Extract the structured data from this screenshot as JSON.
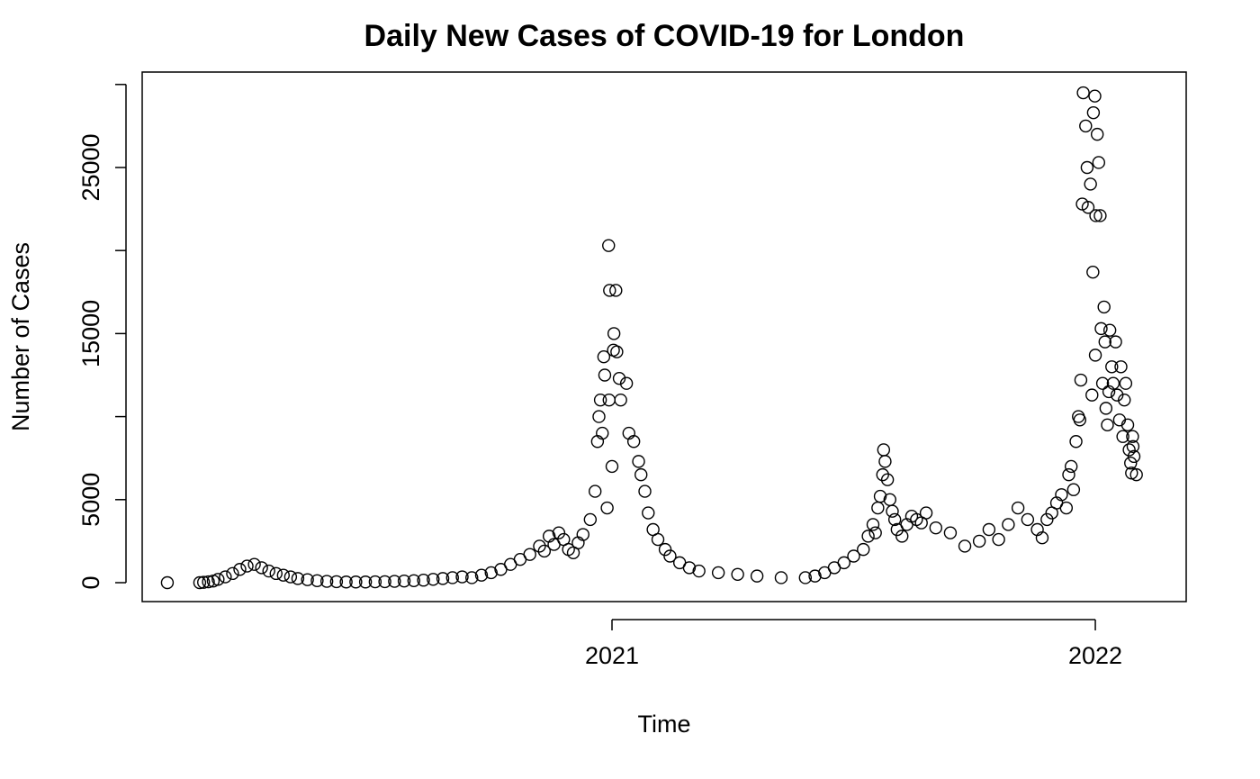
{
  "chart_data": {
    "type": "scatter",
    "title": "Daily New Cases of COVID-19 for London",
    "x_label": "Time",
    "y_label": "Number of Cases",
    "x": [
      2020.08,
      2020.147,
      2020.155,
      2020.165,
      2020.175,
      2020.185,
      2020.2,
      2020.215,
      2020.23,
      2020.245,
      2020.26,
      2020.275,
      2020.29,
      2020.305,
      2020.32,
      2020.335,
      2020.35,
      2020.37,
      2020.39,
      2020.41,
      2020.43,
      2020.45,
      2020.47,
      2020.49,
      2020.51,
      2020.53,
      2020.55,
      2020.57,
      2020.59,
      2020.61,
      2020.63,
      2020.65,
      2020.67,
      2020.69,
      2020.71,
      2020.73,
      2020.75,
      2020.77,
      2020.79,
      2020.81,
      2020.83,
      2020.85,
      2020.86,
      2020.87,
      2020.88,
      2020.89,
      2020.9,
      2020.91,
      2020.92,
      2020.93,
      2020.94,
      2020.955,
      2020.965,
      2020.97,
      2020.973,
      2020.976,
      2020.98,
      2020.983,
      2020.985,
      2020.99,
      2020.993,
      2020.994,
      2020.995,
      2021.0,
      2021.003,
      2021.004,
      2021.008,
      2021.01,
      2021.015,
      2021.018,
      2021.03,
      2021.035,
      2021.045,
      2021.055,
      2021.06,
      2021.068,
      2021.075,
      2021.085,
      2021.095,
      2021.11,
      2021.12,
      2021.14,
      2021.16,
      2021.18,
      2021.22,
      2021.26,
      2021.3,
      2021.35,
      2021.4,
      2021.42,
      2021.44,
      2021.46,
      2021.48,
      2021.5,
      2021.52,
      2021.53,
      2021.54,
      2021.545,
      2021.55,
      2021.555,
      2021.56,
      2021.562,
      2021.565,
      2021.57,
      2021.575,
      2021.58,
      2021.585,
      2021.59,
      2021.6,
      2021.61,
      2021.62,
      2021.63,
      2021.64,
      2021.65,
      2021.67,
      2021.7,
      2021.73,
      2021.76,
      2021.78,
      2021.8,
      2021.82,
      2021.84,
      2021.86,
      2021.88,
      2021.89,
      2021.9,
      2021.91,
      2021.92,
      2021.93,
      2021.94,
      2021.945,
      2021.95,
      2021.955,
      2021.96,
      2021.965,
      2021.968,
      2021.97,
      2021.973,
      2021.975,
      2021.98,
      2021.983,
      2021.985,
      2021.99,
      2021.993,
      2021.995,
      2021.996,
      2021.999,
      2022.0,
      2022.001,
      2022.004,
      2022.007,
      2022.01,
      2022.012,
      2022.015,
      2022.018,
      2022.02,
      2022.022,
      2022.025,
      2022.028,
      2022.03,
      2022.034,
      2022.037,
      2022.042,
      2022.045,
      2022.05,
      2022.053,
      2022.057,
      2022.06,
      2022.063,
      2022.067,
      2022.07,
      2022.073,
      2022.075,
      2022.077,
      2022.078,
      2022.08,
      2022.085
    ],
    "values": [
      0,
      0,
      20,
      50,
      100,
      200,
      350,
      550,
      800,
      1000,
      1100,
      900,
      700,
      550,
      450,
      350,
      250,
      180,
      120,
      80,
      60,
      40,
      40,
      40,
      50,
      60,
      80,
      100,
      120,
      150,
      200,
      250,
      300,
      350,
      300,
      450,
      600,
      800,
      1100,
      1400,
      1700,
      2200,
      1900,
      2800,
      2300,
      3000,
      2600,
      2000,
      1800,
      2400,
      2900,
      3800,
      5500,
      8500,
      10000,
      11000,
      9000,
      13600,
      12500,
      4500,
      20300,
      11000,
      17600,
      7000,
      14000,
      15000,
      17600,
      13900,
      12300,
      11000,
      12000,
      9000,
      8500,
      7300,
      6500,
      5500,
      4200,
      3200,
      2600,
      2000,
      1600,
      1200,
      900,
      700,
      600,
      500,
      400,
      300,
      300,
      400,
      600,
      900,
      1200,
      1600,
      2000,
      2800,
      3500,
      3000,
      4500,
      5200,
      6500,
      8000,
      7300,
      6200,
      5000,
      4300,
      3800,
      3200,
      2800,
      3500,
      4000,
      3800,
      3600,
      4200,
      3300,
      3000,
      2200,
      2500,
      3200,
      2600,
      3500,
      4500,
      3800,
      3200,
      2700,
      3800,
      4200,
      4800,
      5300,
      4500,
      6500,
      7000,
      5600,
      8500,
      10000,
      9800,
      12200,
      22800,
      29500,
      27500,
      25000,
      22600,
      24000,
      11300,
      18700,
      28300,
      29300,
      13700,
      22100,
      27000,
      25300,
      22100,
      15300,
      12000,
      16600,
      14500,
      10500,
      9500,
      11500,
      15200,
      13000,
      12000,
      14500,
      11300,
      9800,
      13000,
      8800,
      11000,
      12000,
      9500,
      8000,
      7200,
      6600,
      8800,
      8200,
      7600,
      6500
    ],
    "color": "#000000",
    "marker": "open-circle",
    "xlim": [
      2020.028,
      2022.188
    ],
    "xticks": [
      2021,
      2022
    ],
    "ylim": [
      -1139,
      30748
    ],
    "yticks": [
      0,
      5000,
      15000,
      25000
    ],
    "yticks_unlabeled": [
      10000,
      20000,
      30000
    ],
    "grid": false
  }
}
